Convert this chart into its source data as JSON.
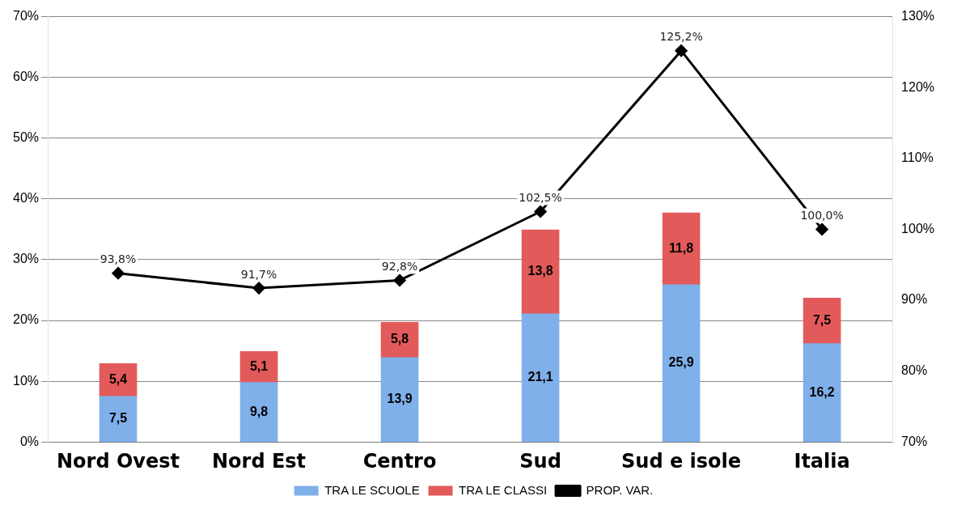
{
  "chart_data": {
    "type": "bar",
    "stacked": true,
    "categories": [
      "Nord Ovest",
      "Nord Est",
      "Centro",
      "Sud",
      "Sud e isole",
      "Italia"
    ],
    "series": [
      {
        "name": "TRA LE SCUOLE",
        "color": "#7fb0ea",
        "values": [
          7.5,
          9.8,
          13.9,
          21.1,
          25.9,
          16.2
        ],
        "value_labels": [
          "7,5",
          "9,8",
          "13,9",
          "21,1",
          "25,9",
          "16,2"
        ]
      },
      {
        "name": "TRA LE CLASSI",
        "color": "#e35a5a",
        "values": [
          5.4,
          5.1,
          5.8,
          13.8,
          11.8,
          7.5
        ],
        "value_labels": [
          "5,4",
          "5,1",
          "5,8",
          "13,8",
          "11,8",
          "7,5"
        ]
      },
      {
        "name": "PROP. VAR.",
        "type": "line",
        "axis": "y2",
        "color": "#000000",
        "marker": "diamond",
        "values": [
          93.8,
          91.7,
          92.8,
          102.5,
          125.2,
          100.0
        ],
        "value_labels": [
          "93,8%",
          "91,7%",
          "92,8%",
          "102,5%",
          "125,2%",
          "100,0%"
        ]
      }
    ],
    "ylim": [
      0,
      70
    ],
    "yticks": [
      {
        "value": 0,
        "label": "0%"
      },
      {
        "value": 10,
        "label": "10%"
      },
      {
        "value": 20,
        "label": "20%"
      },
      {
        "value": 30,
        "label": "30%"
      },
      {
        "value": 40,
        "label": "40%"
      },
      {
        "value": 50,
        "label": "50%"
      },
      {
        "value": 60,
        "label": "60%"
      },
      {
        "value": 70,
        "label": "70%"
      }
    ],
    "y2lim": [
      70,
      130
    ],
    "y2ticks": [
      {
        "value": 70,
        "label": "70%"
      },
      {
        "value": 80,
        "label": "80%"
      },
      {
        "value": 90,
        "label": "90%"
      },
      {
        "value": 100,
        "label": "100%"
      },
      {
        "value": 110,
        "label": "110%"
      },
      {
        "value": 120,
        "label": "120%"
      },
      {
        "value": 130,
        "label": "130%"
      }
    ],
    "grid": "y",
    "legend": "bottom"
  }
}
